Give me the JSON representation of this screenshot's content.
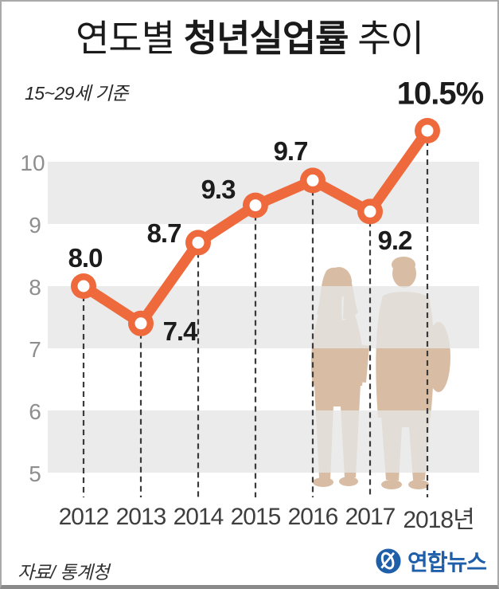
{
  "header": {
    "title_prefix": "연도별 ",
    "title_emphasis": "청년실업률",
    "title_suffix": " 추이",
    "subtitle": "15~29세 기준"
  },
  "footer": {
    "source": "자료/ 통계청",
    "logo_text": "연합뉴스"
  },
  "colors": {
    "line": "#ee6a3c",
    "band_gray": "#ebebeb",
    "silhouette": "#d8bda4",
    "logo_blue": "#1f5fa9",
    "dash": "#3a3a3a"
  },
  "chart_data": {
    "type": "line",
    "title": "연도별 청년실업률 추이",
    "subtitle": "15~29세 기준",
    "unit": "%",
    "categories": [
      "2012",
      "2013",
      "2014",
      "2015",
      "2016",
      "2017",
      "2018년"
    ],
    "values": [
      8.0,
      7.4,
      8.7,
      9.3,
      9.7,
      9.2,
      10.5
    ],
    "point_labels": [
      "8.0",
      "7.4",
      "8.7",
      "9.3",
      "9.7",
      "9.2",
      "10.5%"
    ],
    "yticks": [
      "10",
      "9",
      "8",
      "7",
      "6",
      "5"
    ],
    "ylim": [
      4.5,
      11
    ],
    "grid": "alternating horizontal gray bands",
    "legend": "none",
    "source": "통계청"
  }
}
